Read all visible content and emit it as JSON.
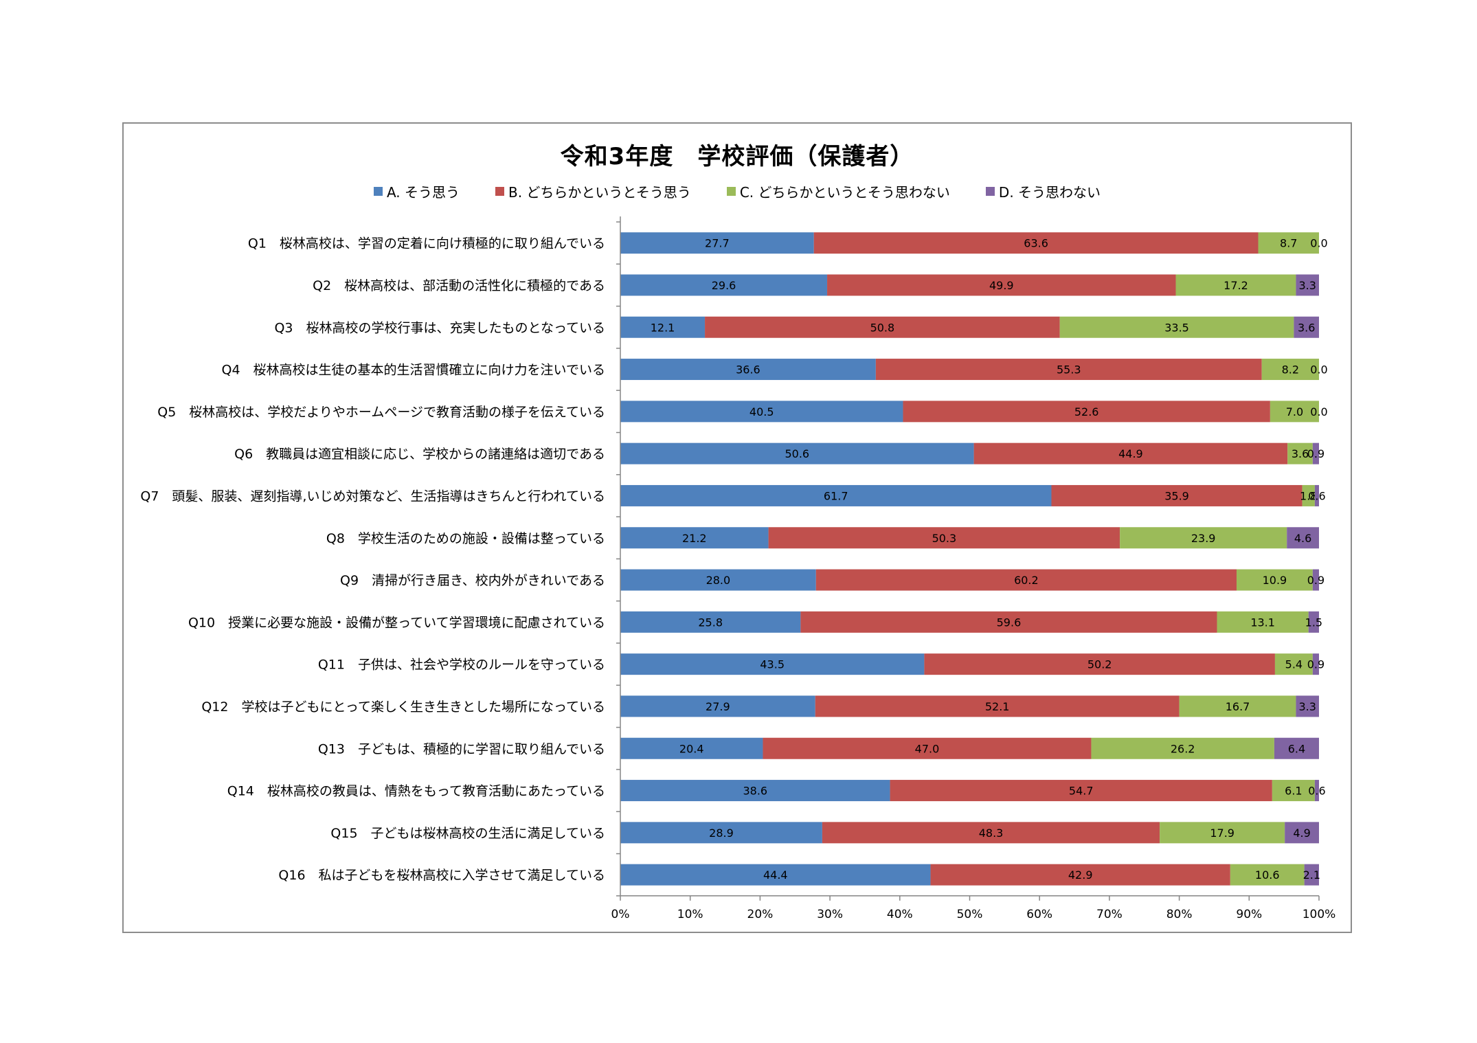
{
  "chart_data": {
    "type": "bar",
    "orientation": "horizontal",
    "stacked": "percent",
    "title": "令和3年度　学校評価（保護者）",
    "categories": [
      "Q1　桜林高校は、学習の定着に向け積極的に取り組んでいる",
      "Q2　桜林高校は、部活動の活性化に積極的である",
      "Q3　桜林高校の学校行事は、充実したものとなっている",
      "Q4　桜林高校は生徒の基本的生活習慣確立に向け力を注いでいる",
      "Q5　桜林高校は、学校だよりやホームページで教育活動の様子を伝えている",
      "Q6　教職員は適宜相談に応じ、学校からの諸連絡は適切である",
      "Q7　頭髪、服装、遅刻指導,いじめ対策など、生活指導はきちんと行われている",
      "Q8　学校生活のための施設・設備は整っている",
      "Q9　清掃が行き届き、校内外がきれいである",
      "Q10　授業に必要な施設・設備が整っていて学習環境に配慮されている",
      "Q11　子供は、社会や学校のルールを守っている",
      "Q12　学校は子どもにとって楽しく生き生きとした場所になっている",
      "Q13　子どもは、積極的に学習に取り組んでいる",
      "Q14　桜林高校の教員は、情熱をもって教育活動にあたっている",
      "Q15　子どもは桜林高校の生活に満足している",
      "Q16　私は子どもを桜林高校に入学させて満足している"
    ],
    "series": [
      {
        "name": "A. そう思う",
        "color": "#4f81bd",
        "values": [
          27.7,
          29.6,
          12.1,
          36.6,
          40.5,
          50.6,
          61.7,
          21.2,
          28.0,
          25.8,
          43.5,
          27.9,
          20.4,
          38.6,
          28.9,
          44.4
        ]
      },
      {
        "name": "B. どちらかというとそう思う",
        "color": "#c0504d",
        "values": [
          63.6,
          49.9,
          50.8,
          55.3,
          52.6,
          44.9,
          35.9,
          50.3,
          60.2,
          59.6,
          50.2,
          52.1,
          47.0,
          54.7,
          48.3,
          42.9
        ]
      },
      {
        "name": "C. どちらかというとそう思わない",
        "color": "#9bbb59",
        "values": [
          8.7,
          17.2,
          33.5,
          8.2,
          7.0,
          3.6,
          1.8,
          23.9,
          10.9,
          13.1,
          5.4,
          16.7,
          26.2,
          6.1,
          17.9,
          10.6
        ]
      },
      {
        "name": "D. そう思わない",
        "color": "#8064a2",
        "values": [
          0.0,
          3.3,
          3.6,
          0.0,
          0.0,
          0.9,
          0.6,
          4.6,
          0.9,
          1.5,
          0.9,
          3.3,
          6.4,
          0.6,
          4.9,
          2.1
        ]
      }
    ],
    "value_labels": [
      [
        "27.7",
        "29.6",
        "12.1",
        "36.6",
        "40.5",
        "50.6",
        "61.7",
        "21.2",
        "28.0",
        "25.8",
        "43.5",
        "27.9",
        "20.4",
        "38.6",
        "28.9",
        "44.4"
      ],
      [
        "63.6",
        "49.9",
        "50.8",
        "55.3",
        "52.6",
        "44.9",
        "35.9",
        "50.3",
        "60.2",
        "59.6",
        "50.2",
        "52.1",
        "47.0",
        "54.7",
        "48.3",
        "42.9"
      ],
      [
        "8.7",
        "17.2",
        "33.5",
        "8.2",
        "7.0",
        "3.6",
        "1.8",
        "23.9",
        "10.9",
        "13.1",
        "5.4",
        "16.7",
        "26.2",
        "6.1",
        "17.9",
        "10.6"
      ],
      [
        "0.0",
        "3.3",
        "3.6",
        "0.0",
        "0.0",
        "0.9",
        "0.6",
        "4.6",
        "0.9",
        "1.5",
        "0.9",
        "3.3",
        "6.4",
        "0.6",
        "4.9",
        "2.1"
      ]
    ],
    "xlim": [
      0,
      100
    ],
    "xticks": [
      "0%",
      "10%",
      "20%",
      "30%",
      "40%",
      "50%",
      "60%",
      "70%",
      "80%",
      "90%",
      "100%"
    ],
    "legend_position": "top",
    "grid": false
  }
}
